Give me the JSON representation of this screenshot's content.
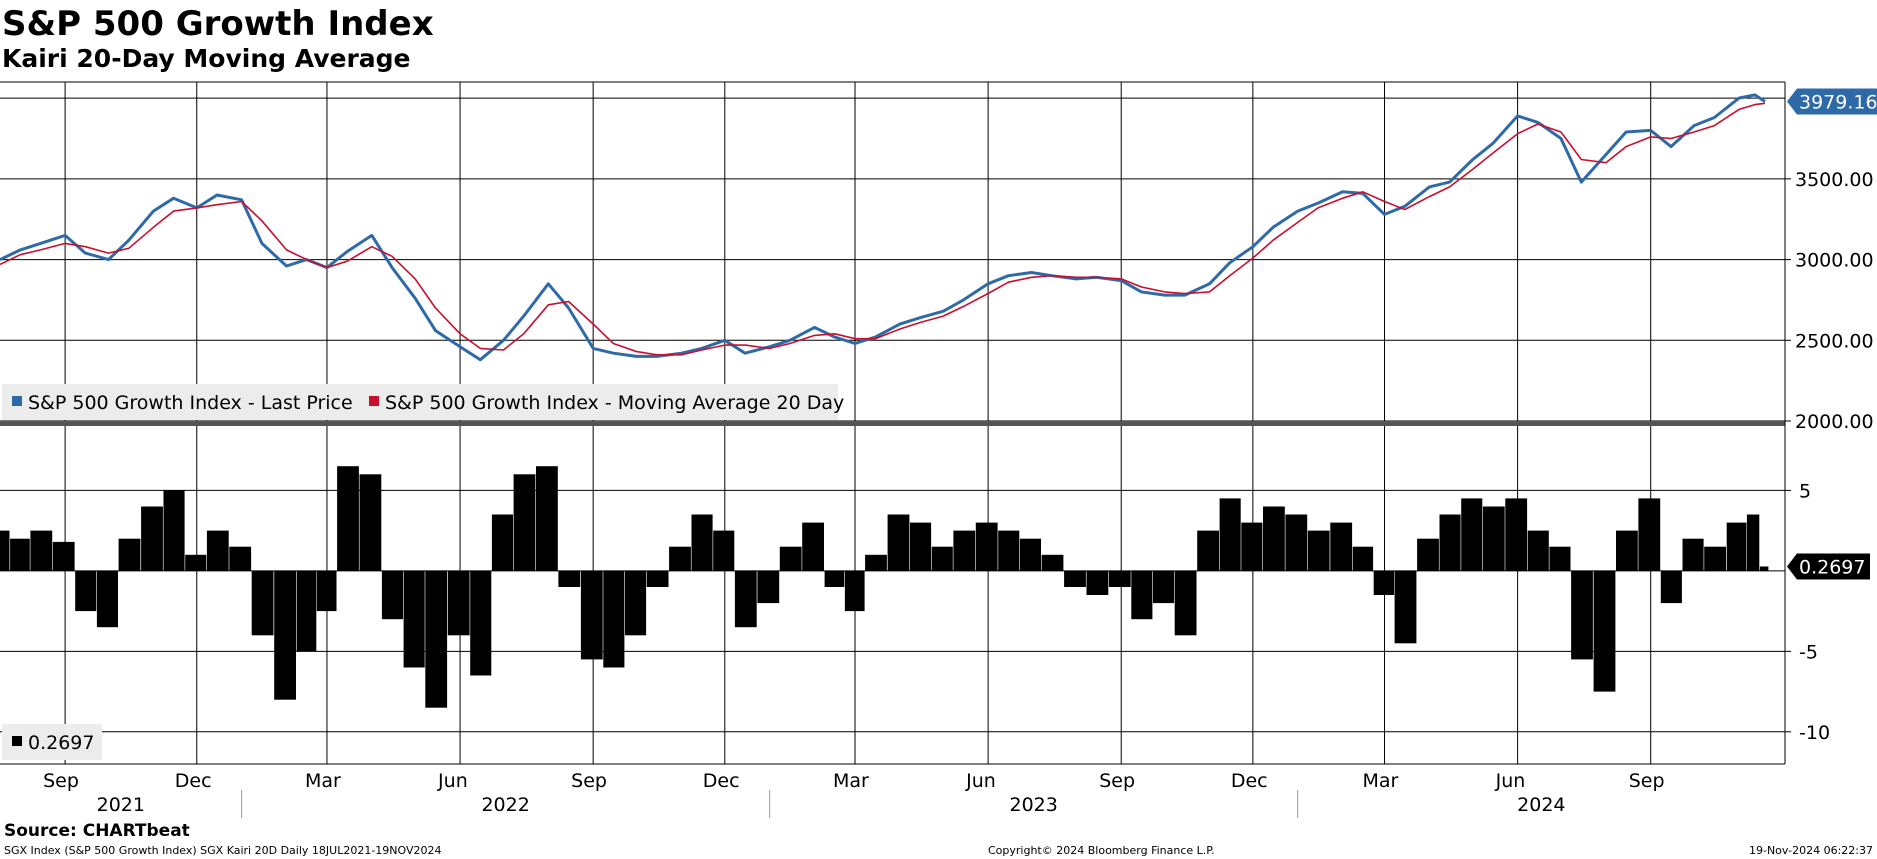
{
  "title": "S&P 500 Growth Index",
  "subtitle": "Kairi 20-Day Moving Average",
  "source": "Source: CHARTbeat",
  "footer": {
    "left": "SGX Index (S&P 500 Growth Index) SGX Kairi 20D  Daily 18JUL2021-19NOV2024",
    "center": "Copyright© 2024 Bloomberg Finance L.P.",
    "right": "19-Nov-2024 06:22:37"
  },
  "colors": {
    "price": "#2f6aa8",
    "ma": "#c8102e",
    "kairi": "#000000",
    "grid": "#000000",
    "last_box_price": "#2f6aa8",
    "last_box_kairi": "#000000"
  },
  "chart_data": [
    {
      "type": "line",
      "name": "price-panel",
      "ylim": [
        2000,
        4100
      ],
      "yticks": [
        "2000.00",
        "2500.00",
        "3000.00",
        "3500.00"
      ],
      "last_value_label": "3979.16",
      "legend": [
        "S&P 500 Growth Index - Last Price",
        "S&P 500 Growth Index - Moving Average 20 Day"
      ],
      "x": [
        "2021-07-18",
        "2021-08-01",
        "2021-08-15",
        "2021-09-01",
        "2021-09-15",
        "2021-10-01",
        "2021-10-15",
        "2021-11-01",
        "2021-11-15",
        "2021-12-01",
        "2021-12-15",
        "2022-01-01",
        "2022-01-15",
        "2022-02-01",
        "2022-02-15",
        "2022-03-01",
        "2022-03-15",
        "2022-04-01",
        "2022-04-15",
        "2022-05-01",
        "2022-05-15",
        "2022-06-01",
        "2022-06-15",
        "2022-07-01",
        "2022-07-15",
        "2022-08-01",
        "2022-08-15",
        "2022-09-01",
        "2022-09-15",
        "2022-10-01",
        "2022-10-15",
        "2022-11-01",
        "2022-11-15",
        "2022-12-01",
        "2022-12-15",
        "2023-01-01",
        "2023-01-15",
        "2023-02-01",
        "2023-02-15",
        "2023-03-01",
        "2023-03-15",
        "2023-04-01",
        "2023-04-15",
        "2023-05-01",
        "2023-05-15",
        "2023-06-01",
        "2023-06-15",
        "2023-07-01",
        "2023-07-15",
        "2023-08-01",
        "2023-08-15",
        "2023-09-01",
        "2023-09-15",
        "2023-10-01",
        "2023-10-15",
        "2023-11-01",
        "2023-11-15",
        "2023-12-01",
        "2023-12-15",
        "2024-01-01",
        "2024-01-15",
        "2024-02-01",
        "2024-02-15",
        "2024-03-01",
        "2024-03-15",
        "2024-04-01",
        "2024-04-15",
        "2024-05-01",
        "2024-05-15",
        "2024-06-01",
        "2024-06-15",
        "2024-07-01",
        "2024-07-15",
        "2024-08-01",
        "2024-08-15",
        "2024-09-01",
        "2024-09-15",
        "2024-10-01",
        "2024-10-15",
        "2024-11-01",
        "2024-11-12",
        "2024-11-19"
      ],
      "series": [
        {
          "name": "S&P 500 Growth Index - Last Price",
          "values": [
            3000,
            3060,
            3100,
            3150,
            3040,
            3000,
            3120,
            3300,
            3380,
            3320,
            3400,
            3370,
            3100,
            2960,
            3000,
            2950,
            3050,
            3150,
            2950,
            2760,
            2560,
            2460,
            2380,
            2500,
            2650,
            2850,
            2700,
            2450,
            2420,
            2400,
            2400,
            2420,
            2450,
            2500,
            2420,
            2460,
            2500,
            2580,
            2520,
            2480,
            2520,
            2600,
            2640,
            2680,
            2750,
            2850,
            2900,
            2920,
            2900,
            2880,
            2890,
            2870,
            2800,
            2780,
            2780,
            2850,
            2980,
            3080,
            3200,
            3300,
            3350,
            3420,
            3410,
            3280,
            3330,
            3450,
            3480,
            3620,
            3720,
            3890,
            3850,
            3750,
            3480,
            3650,
            3790,
            3800,
            3700,
            3830,
            3880,
            4000,
            4020,
            3979.16
          ]
        },
        {
          "name": "S&P 500 Growth Index - Moving Average 20 Day",
          "values": [
            2970,
            3030,
            3060,
            3100,
            3080,
            3040,
            3070,
            3200,
            3300,
            3320,
            3340,
            3360,
            3240,
            3060,
            3000,
            2950,
            2990,
            3080,
            3020,
            2880,
            2700,
            2540,
            2450,
            2440,
            2540,
            2720,
            2740,
            2600,
            2480,
            2430,
            2410,
            2410,
            2440,
            2470,
            2470,
            2450,
            2480,
            2530,
            2540,
            2510,
            2510,
            2570,
            2610,
            2650,
            2710,
            2790,
            2860,
            2890,
            2900,
            2890,
            2890,
            2880,
            2830,
            2800,
            2790,
            2800,
            2900,
            3010,
            3120,
            3230,
            3320,
            3380,
            3420,
            3360,
            3310,
            3390,
            3450,
            3560,
            3660,
            3780,
            3840,
            3790,
            3620,
            3600,
            3700,
            3760,
            3750,
            3790,
            3830,
            3930,
            3960,
            3968
          ]
        }
      ]
    },
    {
      "type": "bar",
      "name": "kairi-panel",
      "ylim": [
        -12,
        9
      ],
      "yticks": [
        "-10",
        "-5",
        "5"
      ],
      "last_value_label": "0.2697",
      "legend": [
        "0.2697"
      ],
      "x": [
        "2021-07-18",
        "2021-08-01",
        "2021-08-15",
        "2021-09-01",
        "2021-09-15",
        "2021-10-01",
        "2021-10-15",
        "2021-11-01",
        "2021-11-15",
        "2021-12-01",
        "2021-12-15",
        "2022-01-01",
        "2022-01-15",
        "2022-02-01",
        "2022-02-15",
        "2022-03-01",
        "2022-03-15",
        "2022-04-01",
        "2022-04-15",
        "2022-05-01",
        "2022-05-15",
        "2022-06-01",
        "2022-06-15",
        "2022-07-01",
        "2022-07-15",
        "2022-08-01",
        "2022-08-15",
        "2022-09-01",
        "2022-09-15",
        "2022-10-01",
        "2022-10-15",
        "2022-11-01",
        "2022-11-15",
        "2022-12-01",
        "2022-12-15",
        "2023-01-01",
        "2023-01-15",
        "2023-02-01",
        "2023-02-15",
        "2023-03-01",
        "2023-03-15",
        "2023-04-01",
        "2023-04-15",
        "2023-05-01",
        "2023-05-15",
        "2023-06-01",
        "2023-06-15",
        "2023-07-01",
        "2023-07-15",
        "2023-08-01",
        "2023-08-15",
        "2023-09-01",
        "2023-09-15",
        "2023-10-01",
        "2023-10-15",
        "2023-11-01",
        "2023-11-15",
        "2023-12-01",
        "2023-12-15",
        "2024-01-01",
        "2024-01-15",
        "2024-02-01",
        "2024-02-15",
        "2024-03-01",
        "2024-03-15",
        "2024-04-01",
        "2024-04-15",
        "2024-05-01",
        "2024-05-15",
        "2024-06-01",
        "2024-06-15",
        "2024-07-01",
        "2024-07-15",
        "2024-08-01",
        "2024-08-15",
        "2024-09-01",
        "2024-09-15",
        "2024-10-01",
        "2024-10-15",
        "2024-11-01",
        "2024-11-12",
        "2024-11-19"
      ],
      "series": [
        {
          "name": "Kairi 20D",
          "values": [
            2.5,
            2.0,
            2.5,
            1.8,
            -2.5,
            -3.5,
            2.0,
            4.0,
            5.0,
            1.0,
            2.5,
            1.5,
            -4.0,
            -8.0,
            -5.0,
            -2.5,
            6.5,
            6.0,
            -3.0,
            -6.0,
            -8.5,
            -4.0,
            -6.5,
            3.5,
            6.0,
            6.5,
            -1.0,
            -5.5,
            -6.0,
            -4.0,
            -1.0,
            1.5,
            3.5,
            2.5,
            -3.5,
            -2.0,
            1.5,
            3.0,
            -1.0,
            -2.5,
            1.0,
            3.5,
            3.0,
            1.5,
            2.5,
            3.0,
            2.5,
            2.0,
            1.0,
            -1.0,
            -1.5,
            -1.0,
            -3.0,
            -2.0,
            -4.0,
            2.5,
            4.5,
            3.0,
            4.0,
            3.5,
            2.5,
            3.0,
            1.5,
            -1.5,
            -4.5,
            2.0,
            3.5,
            4.5,
            4.0,
            4.5,
            2.5,
            1.5,
            -5.5,
            -7.5,
            2.5,
            4.5,
            -2.0,
            2.0,
            1.5,
            3.0,
            3.5,
            0.2697
          ]
        }
      ]
    }
  ],
  "xaxis": {
    "months": [
      {
        "label": "Sep",
        "date": "2021-09-01"
      },
      {
        "label": "Dec",
        "date": "2021-12-01"
      },
      {
        "label": "Mar",
        "date": "2022-03-01"
      },
      {
        "label": "Jun",
        "date": "2022-06-01"
      },
      {
        "label": "Sep",
        "date": "2022-09-01"
      },
      {
        "label": "Dec",
        "date": "2022-12-01"
      },
      {
        "label": "Mar",
        "date": "2023-03-01"
      },
      {
        "label": "Jun",
        "date": "2023-06-01"
      },
      {
        "label": "Sep",
        "date": "2023-09-01"
      },
      {
        "label": "Dec",
        "date": "2023-12-01"
      },
      {
        "label": "Mar",
        "date": "2024-03-01"
      },
      {
        "label": "Jun",
        "date": "2024-06-01"
      },
      {
        "label": "Sep",
        "date": "2024-09-01"
      }
    ],
    "years": [
      {
        "label": "2021"
      },
      {
        "label": "2022"
      },
      {
        "label": "2023"
      },
      {
        "label": "2024"
      }
    ]
  }
}
